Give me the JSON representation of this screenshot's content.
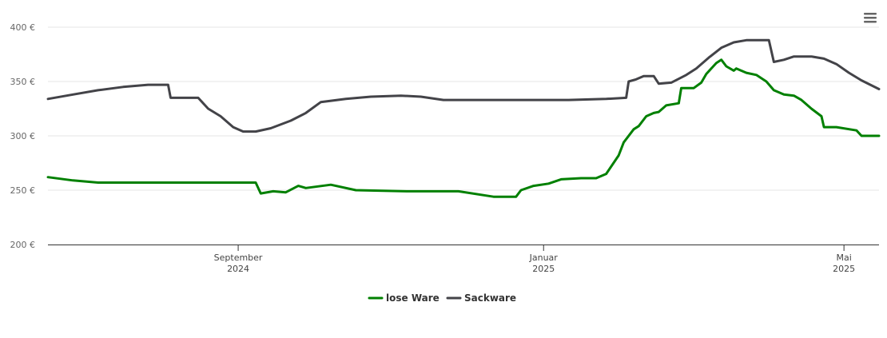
{
  "chart_data": {
    "type": "line",
    "title": "",
    "xlabel": "",
    "ylabel": "",
    "ylim": [
      200,
      400
    ],
    "xlim": [
      "2024-06-17",
      "2025-05-15"
    ],
    "y_ticks": [
      {
        "value": 200,
        "label": "200 €"
      },
      {
        "value": 250,
        "label": "250 €"
      },
      {
        "value": 300,
        "label": "300 €"
      },
      {
        "value": 350,
        "label": "350 €"
      },
      {
        "value": 400,
        "label": "400 €"
      }
    ],
    "x_ticks": [
      {
        "date": "2024-09-01",
        "line1": "September",
        "line2": "2024"
      },
      {
        "date": "2025-01-01",
        "line1": "Januar",
        "line2": "2025"
      },
      {
        "date": "2025-05-01",
        "line1": "Mai",
        "line2": "2025"
      }
    ],
    "legend_position": "bottom-center",
    "grid": true,
    "series": [
      {
        "name": "lose Ware",
        "color": "#008000",
        "points": [
          [
            "2024-06-17",
            262
          ],
          [
            "2024-06-27",
            259
          ],
          [
            "2024-07-07",
            257
          ],
          [
            "2024-07-17",
            257
          ],
          [
            "2024-08-10",
            257
          ],
          [
            "2024-08-30",
            257
          ],
          [
            "2024-09-08",
            257
          ],
          [
            "2024-09-10",
            247
          ],
          [
            "2024-09-15",
            249
          ],
          [
            "2024-09-20",
            248
          ],
          [
            "2024-09-25",
            254
          ],
          [
            "2024-09-28",
            252
          ],
          [
            "2024-10-08",
            255
          ],
          [
            "2024-10-18",
            250
          ],
          [
            "2024-11-08",
            249
          ],
          [
            "2024-11-28",
            249
          ],
          [
            "2024-12-12",
            244
          ],
          [
            "2024-12-21",
            244
          ],
          [
            "2024-12-23",
            250
          ],
          [
            "2024-12-28",
            254
          ],
          [
            "2025-01-03",
            256
          ],
          [
            "2025-01-08",
            260
          ],
          [
            "2025-01-16",
            261
          ],
          [
            "2025-01-22",
            261
          ],
          [
            "2025-01-26",
            265
          ],
          [
            "2025-01-31",
            282
          ],
          [
            "2025-02-02",
            294
          ],
          [
            "2025-02-06",
            306
          ],
          [
            "2025-02-08",
            309
          ],
          [
            "2025-02-11",
            318
          ],
          [
            "2025-02-14",
            321
          ],
          [
            "2025-02-16",
            322
          ],
          [
            "2025-02-19",
            328
          ],
          [
            "2025-02-24",
            330
          ],
          [
            "2025-02-25",
            344
          ],
          [
            "2025-03-02",
            344
          ],
          [
            "2025-03-05",
            349
          ],
          [
            "2025-03-07",
            357
          ],
          [
            "2025-03-11",
            367
          ],
          [
            "2025-03-13",
            370
          ],
          [
            "2025-03-15",
            364
          ],
          [
            "2025-03-18",
            360
          ],
          [
            "2025-03-19",
            362
          ],
          [
            "2025-03-23",
            358
          ],
          [
            "2025-03-27",
            356
          ],
          [
            "2025-03-31",
            350
          ],
          [
            "2025-04-03",
            342
          ],
          [
            "2025-04-07",
            338
          ],
          [
            "2025-04-11",
            337
          ],
          [
            "2025-04-14",
            333
          ],
          [
            "2025-04-18",
            325
          ],
          [
            "2025-04-22",
            318
          ],
          [
            "2025-04-23",
            308
          ],
          [
            "2025-04-28",
            308
          ],
          [
            "2025-05-06",
            305
          ],
          [
            "2025-05-08",
            300
          ],
          [
            "2025-05-15",
            300
          ]
        ]
      },
      {
        "name": "Sackware",
        "color": "#434348",
        "points": [
          [
            "2024-06-17",
            334
          ],
          [
            "2024-06-27",
            338
          ],
          [
            "2024-07-07",
            342
          ],
          [
            "2024-07-17",
            345
          ],
          [
            "2024-07-27",
            347
          ],
          [
            "2024-08-04",
            347
          ],
          [
            "2024-08-05",
            335
          ],
          [
            "2024-08-16",
            335
          ],
          [
            "2024-08-20",
            325
          ],
          [
            "2024-08-25",
            318
          ],
          [
            "2024-08-30",
            308
          ],
          [
            "2024-09-03",
            304
          ],
          [
            "2024-09-08",
            304
          ],
          [
            "2024-09-14",
            307
          ],
          [
            "2024-09-22",
            314
          ],
          [
            "2024-09-28",
            321
          ],
          [
            "2024-10-04",
            331
          ],
          [
            "2024-10-14",
            334
          ],
          [
            "2024-10-24",
            336
          ],
          [
            "2024-11-05",
            337
          ],
          [
            "2024-11-13",
            336
          ],
          [
            "2024-11-22",
            333
          ],
          [
            "2024-12-02",
            333
          ],
          [
            "2024-12-22",
            333
          ],
          [
            "2025-01-11",
            333
          ],
          [
            "2025-01-26",
            334
          ],
          [
            "2025-02-03",
            335
          ],
          [
            "2025-02-04",
            350
          ],
          [
            "2025-02-07",
            352
          ],
          [
            "2025-02-10",
            355
          ],
          [
            "2025-02-14",
            355
          ],
          [
            "2025-02-16",
            348
          ],
          [
            "2025-02-21",
            349
          ],
          [
            "2025-02-27",
            356
          ],
          [
            "2025-03-03",
            362
          ],
          [
            "2025-03-08",
            372
          ],
          [
            "2025-03-13",
            381
          ],
          [
            "2025-03-18",
            386
          ],
          [
            "2025-03-23",
            388
          ],
          [
            "2025-04-01",
            388
          ],
          [
            "2025-04-03",
            368
          ],
          [
            "2025-04-07",
            370
          ],
          [
            "2025-04-11",
            373
          ],
          [
            "2025-04-18",
            373
          ],
          [
            "2025-04-23",
            371
          ],
          [
            "2025-04-28",
            366
          ],
          [
            "2025-05-03",
            358
          ],
          [
            "2025-05-08",
            351
          ],
          [
            "2025-05-15",
            343
          ]
        ]
      }
    ]
  },
  "menu": {
    "icon": "menu-icon"
  }
}
